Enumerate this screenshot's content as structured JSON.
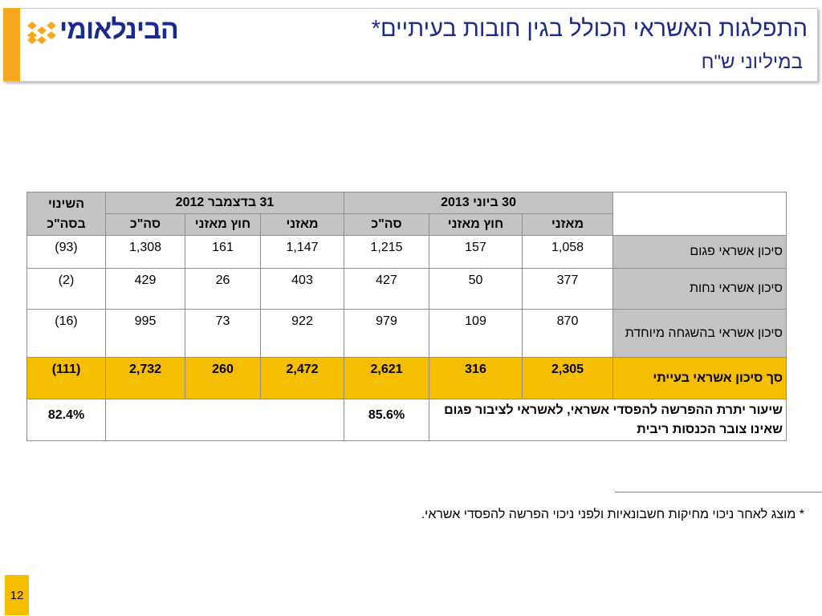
{
  "header": {
    "logo_text": "הבינלאומי",
    "title": "התפלגות האשראי הכולל בגין חובות בעיתיים*",
    "subtitle": "במיליוני ש\"ח"
  },
  "table": {
    "change_header": "השינוי בסה\"כ",
    "period_2012": "31 בדצמבר 2012",
    "period_2013": "30 ביוני 2013",
    "col_balance": "מאזני",
    "col_off_balance": "חוץ מאזני",
    "col_total": "סה\"כ",
    "rows": [
      {
        "label": "סיכון אשראי פגום",
        "jun_balance": "1,058",
        "jun_off": "157",
        "jun_total": "1,215",
        "dec_balance": "1,147",
        "dec_off": "161",
        "dec_total": "1,308",
        "change": "(93)"
      },
      {
        "label": "סיכון אשראי נחות",
        "jun_balance": "377",
        "jun_off": "50",
        "jun_total": "427",
        "dec_balance": "403",
        "dec_off": "26",
        "dec_total": "429",
        "change": "(2)"
      },
      {
        "label": "סיכון אשראי בהשגחה מיוחדת",
        "jun_balance": "870",
        "jun_off": "109",
        "jun_total": "979",
        "dec_balance": "922",
        "dec_off": "73",
        "dec_total": "995",
        "change": "(16)"
      },
      {
        "label": "סך סיכון אשראי בעייתי",
        "jun_balance": "2,305",
        "jun_off": "316",
        "jun_total": "2,621",
        "dec_balance": "2,472",
        "dec_off": "260",
        "dec_total": "2,732",
        "change": "(111)"
      }
    ],
    "ratio_label": "שיעור יתרת ההפרשה להפסדי אשראי, לאשראי לציבור פגום שאינו צובר הכנסות ריבית",
    "ratio_2013": "85.6%",
    "ratio_change": "82.4%"
  },
  "footnote": "* מוצג לאחר ניכוי מחיקות חשבונאיות ולפני ניכוי הפרשה להפסדי אשראי.",
  "page_number": "12",
  "colors": {
    "brand_blue": "#1b2a8c",
    "accent_orange": "#f5a81c",
    "highlight_yellow": "#f6be00",
    "header_gray": "#c4c4c4"
  }
}
